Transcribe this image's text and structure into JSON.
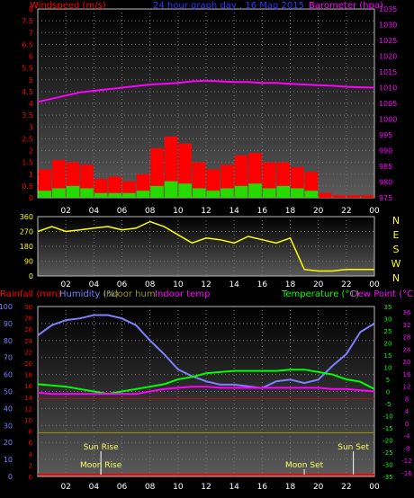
{
  "chart_data": [
    {
      "type": "bar",
      "title": "24 hour graph day . 16 Mag 2015",
      "ylabel_left": "Windspeed (m/s)",
      "ylabel_right": "Barometer (hpa)",
      "ylim_left": [
        0,
        8
      ],
      "ylim_right": [
        975,
        1035
      ],
      "yticks_left": [
        "0",
        "0.5",
        "1",
        "1.5",
        "2",
        "2.5",
        "3",
        "3.5",
        "4",
        "4.5",
        "5",
        "5.5",
        "6",
        "6.5",
        "7",
        "7.5",
        "8"
      ],
      "yticks_right": [
        "975",
        "980",
        "985",
        "990",
        "995",
        "1000",
        "1005",
        "1010",
        "1015",
        "1020",
        "1025",
        "1030",
        "1035"
      ],
      "xticks": [
        "02",
        "04",
        "06",
        "08",
        "10",
        "12",
        "14",
        "16",
        "18",
        "20",
        "22",
        "00"
      ],
      "x_hours": [
        0,
        1,
        2,
        3,
        4,
        5,
        6,
        7,
        8,
        9,
        10,
        11,
        12,
        13,
        14,
        15,
        16,
        17,
        18,
        19,
        20,
        21,
        22,
        23,
        24
      ],
      "series": [
        {
          "name": "Windspeed gust",
          "color": "#ff0000",
          "values": [
            1.2,
            1.6,
            1.5,
            1.4,
            0.8,
            0.9,
            0.7,
            1.0,
            2.1,
            2.6,
            2.3,
            1.5,
            1.2,
            1.4,
            1.8,
            1.9,
            1.5,
            1.5,
            1.3,
            1.1,
            0.2,
            0.1,
            0.1,
            0.1,
            0.1
          ]
        },
        {
          "name": "Windspeed avg",
          "color": "#00ff00",
          "values": [
            0.3,
            0.4,
            0.5,
            0.4,
            0.2,
            0.2,
            0.2,
            0.3,
            0.5,
            0.7,
            0.6,
            0.4,
            0.3,
            0.4,
            0.5,
            0.6,
            0.4,
            0.5,
            0.4,
            0.3,
            0.0,
            0.0,
            0.0,
            0.0,
            0.0
          ]
        },
        {
          "name": "Barometer",
          "color": "#ff00ff",
          "values": [
            1005.5,
            1006.5,
            1007.5,
            1008.5,
            1009.0,
            1009.5,
            1010.0,
            1010.5,
            1011.0,
            1011.2,
            1011.5,
            1012.0,
            1012.2,
            1012.0,
            1011.8,
            1011.8,
            1011.5,
            1011.5,
            1011.2,
            1011.0,
            1010.8,
            1010.6,
            1010.3,
            1010.1,
            1010.0
          ]
        }
      ]
    },
    {
      "type": "scatter",
      "ylabels": [
        "N",
        "W",
        "S",
        "E",
        "N"
      ],
      "yticks": [
        "0",
        "90",
        "180",
        "270",
        "360"
      ],
      "ylim": [
        0,
        360
      ],
      "xticks": [
        "02",
        "04",
        "06",
        "08",
        "10",
        "12",
        "14",
        "16",
        "18",
        "20",
        "22",
        "00"
      ],
      "series": [
        {
          "name": "Wind direction",
          "color": "#ffff00",
          "x_hours": [
            0,
            1,
            2,
            3,
            4,
            5,
            6,
            7,
            8,
            9,
            10,
            11,
            12,
            13,
            14,
            15,
            16,
            17,
            18,
            19,
            20,
            21,
            22,
            23,
            24
          ],
          "values": [
            270,
            300,
            270,
            280,
            290,
            300,
            280,
            290,
            330,
            300,
            250,
            200,
            230,
            220,
            200,
            240,
            220,
            200,
            230,
            40,
            30,
            30,
            40,
            40,
            40
          ]
        }
      ]
    },
    {
      "type": "line",
      "legend": [
        "Rainfall (mm)",
        "Humidity (%)",
        "Indoor hum",
        "Indoor temp",
        "Temperature (°C)",
        "Dew Point (°C)"
      ],
      "yticks_humidity": [
        "0",
        "10",
        "20",
        "30",
        "40",
        "50",
        "60",
        "70",
        "80",
        "90",
        "100"
      ],
      "yticks_rain": [
        "0",
        "2",
        "4",
        "6",
        "8",
        "10",
        "12",
        "14",
        "16",
        "18",
        "20",
        "22",
        "24",
        "26",
        "28",
        "30"
      ],
      "yticks_temp_right": [
        "-35",
        "-30",
        "-25",
        "-20",
        "-15",
        "-10",
        "-5",
        "0",
        "5",
        "10",
        "15",
        "20",
        "25",
        "30",
        "35"
      ],
      "yticks_temp_far": [
        "-16",
        "-12",
        "-8",
        "-4",
        "0",
        "4",
        "8",
        "12",
        "16",
        "20",
        "24",
        "28",
        "32",
        "36"
      ],
      "ylim_humidity": [
        0,
        100
      ],
      "ylim_temp": [
        -35,
        35
      ],
      "xticks": [
        "02",
        "04",
        "06",
        "08",
        "10",
        "12",
        "14",
        "16",
        "18",
        "20",
        "22",
        "00"
      ],
      "x_hours": [
        0,
        1,
        2,
        3,
        4,
        5,
        6,
        7,
        8,
        9,
        10,
        11,
        12,
        13,
        14,
        15,
        16,
        17,
        18,
        19,
        20,
        21,
        22,
        23,
        24
      ],
      "series": [
        {
          "name": "Humidity (%)",
          "color": "#7f7fff",
          "values": [
            83,
            89,
            92,
            93,
            95,
            95,
            93,
            89,
            80,
            72,
            63,
            59,
            56,
            54,
            54,
            53,
            52,
            56,
            57,
            55,
            57,
            65,
            72,
            85,
            90
          ]
        },
        {
          "name": "Temperature (°C)",
          "color": "#00ff00",
          "values": [
            3,
            2.5,
            2,
            1,
            0,
            -1,
            0,
            1,
            2,
            3,
            5,
            6,
            7.5,
            8,
            8.5,
            8.5,
            8.5,
            8.5,
            9,
            9,
            8,
            7,
            5,
            4,
            1
          ]
        },
        {
          "name": "Dew Point (°C)",
          "color": "#ff00ff",
          "values": [
            -0.5,
            -1,
            -1,
            -1,
            -1,
            -1,
            -1,
            -1,
            0,
            1,
            1.5,
            2,
            2,
            1.5,
            1.5,
            1.5,
            1.5,
            1.5,
            1.5,
            1.5,
            1.5,
            1,
            1,
            0.5,
            0
          ]
        },
        {
          "name": "Indoor temp",
          "color": "#aa1111",
          "values": [
            -3,
            -3,
            -3,
            -3,
            -3,
            -3,
            -3,
            -3,
            -3,
            -3,
            -3,
            -3,
            -3,
            -3,
            -3,
            -3,
            -3,
            -3,
            -3,
            -3,
            -3,
            -3,
            -3,
            -3,
            -3
          ]
        },
        {
          "name": "Indoor hum",
          "color": "#999900",
          "values": [
            -17,
            -17,
            -17,
            -17,
            -17,
            -17,
            -17,
            -17,
            -17,
            -17,
            -17,
            -17,
            -17,
            -17,
            -17,
            -17,
            -17,
            -17,
            -17,
            -17,
            -17,
            -17,
            -17,
            -17,
            -17
          ]
        },
        {
          "name": "Rainfall (mm)",
          "color": "#ff0000",
          "values": [
            0,
            0,
            0,
            0,
            0,
            0,
            0,
            0,
            0,
            0,
            0,
            0,
            0,
            0,
            0,
            0,
            0,
            0,
            0,
            0,
            0,
            0,
            0,
            0,
            0
          ]
        }
      ],
      "annotations": [
        {
          "text": "Sun Rise",
          "hour": 4.5
        },
        {
          "text": "Moon Rise",
          "hour": 4.5
        },
        {
          "text": "Moon Set",
          "hour": 19.0
        },
        {
          "text": "Sun Set",
          "hour": 22.5
        }
      ]
    }
  ]
}
